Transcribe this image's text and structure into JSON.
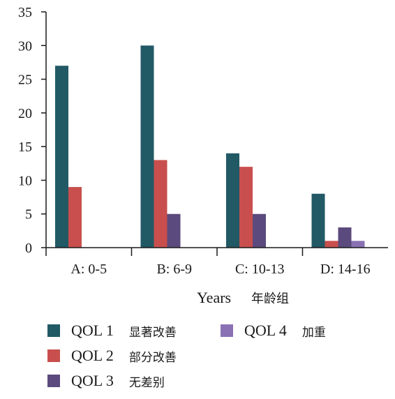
{
  "chart_data": {
    "type": "bar",
    "categories": [
      "A: 0-5",
      "B: 6-9",
      "C: 10-13",
      "D: 14-16"
    ],
    "series": [
      {
        "name": "QOL 1",
        "name_cn": "显著改善",
        "color": "#215965",
        "values": [
          27,
          30,
          14,
          8
        ]
      },
      {
        "name": "QOL 2",
        "name_cn": "部分改善",
        "color": "#c84f4d",
        "values": [
          9,
          13,
          12,
          1
        ]
      },
      {
        "name": "QOL 3",
        "name_cn": "无差别",
        "color": "#5b4a7d",
        "values": [
          0,
          5,
          5,
          3
        ]
      },
      {
        "name": "QOL 4",
        "name_cn": "加重",
        "color": "#8a71b3",
        "values": [
          0,
          0,
          0,
          1
        ]
      }
    ],
    "xlabel": "Years",
    "xlabel_cn": "年龄组",
    "ylabel": "",
    "ylim": [
      0,
      35
    ],
    "yticks": [
      "0",
      "5",
      "10",
      "15",
      "20",
      "25",
      "30",
      "35"
    ],
    "grid": false,
    "legend_position": "bottom"
  }
}
